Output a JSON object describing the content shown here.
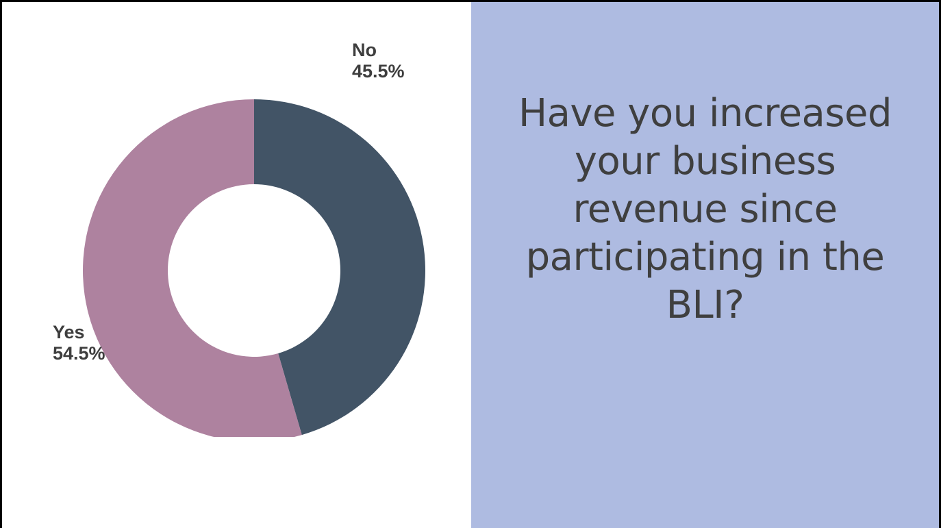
{
  "slide": {
    "panel_color": "#aebbe1",
    "question": "Have you increased your business revenue since participating in the BLI?",
    "question_color": "#3f3f3f"
  },
  "chart_data": {
    "type": "pie",
    "variant": "donut",
    "title": "",
    "start_angle_deg": 0,
    "direction": "clockwise",
    "slices": [
      {
        "label": "No",
        "value": 45.5,
        "display": "45.5%",
        "color": "#425466"
      },
      {
        "label": "Yes",
        "value": 54.5,
        "display": "54.5%",
        "color": "#ae829f"
      }
    ],
    "legend": "none"
  }
}
